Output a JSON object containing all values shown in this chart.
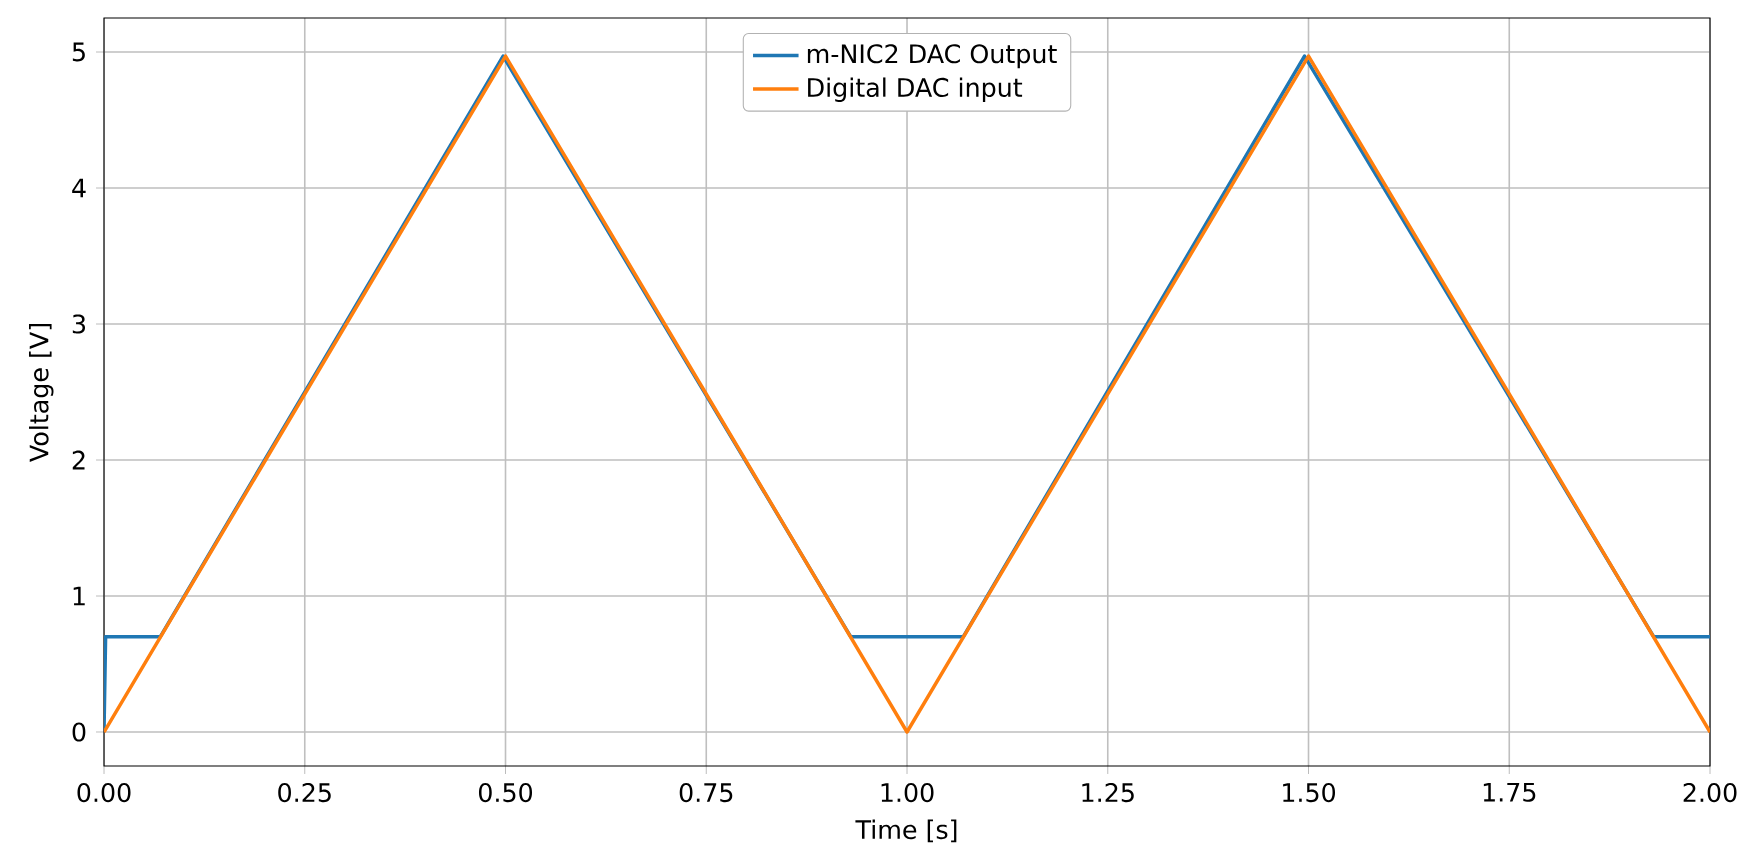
{
  "chart_data": {
    "type": "line",
    "xlabel": "Time [s]",
    "ylabel": "Voltage [V]",
    "series": [
      {
        "name": "m-NIC2 DAC Output",
        "color": "#1f77b4",
        "x": [
          0,
          0.002,
          0.07,
          0.497,
          0.93,
          1.07,
          1.495,
          1.93,
          2.0
        ],
        "values": [
          0,
          0.7,
          0.7,
          4.97,
          0.7,
          0.7,
          4.97,
          0.7,
          0.7
        ]
      },
      {
        "name": "Digital DAC input",
        "color": "#ff7f0e",
        "x": [
          0,
          0.5,
          1.0,
          1.5,
          2.0
        ],
        "values": [
          0,
          4.97,
          0,
          4.97,
          0
        ]
      }
    ],
    "xlim": [
      0,
      2.0
    ],
    "ylim": [
      -0.25,
      5.25
    ],
    "xticks": [
      {
        "value": 0,
        "label": "0.00"
      },
      {
        "value": 0.25,
        "label": "0.25"
      },
      {
        "value": 0.5,
        "label": "0.50"
      },
      {
        "value": 0.75,
        "label": "0.75"
      },
      {
        "value": 1.0,
        "label": "1.00"
      },
      {
        "value": 1.25,
        "label": "1.25"
      },
      {
        "value": 1.5,
        "label": "1.50"
      },
      {
        "value": 1.75,
        "label": "1.75"
      },
      {
        "value": 2.0,
        "label": "2.00"
      }
    ],
    "yticks": [
      0,
      1,
      2,
      3,
      4,
      5
    ],
    "grid": true,
    "legend": "top",
    "line_style": "solid",
    "marker": "none"
  }
}
